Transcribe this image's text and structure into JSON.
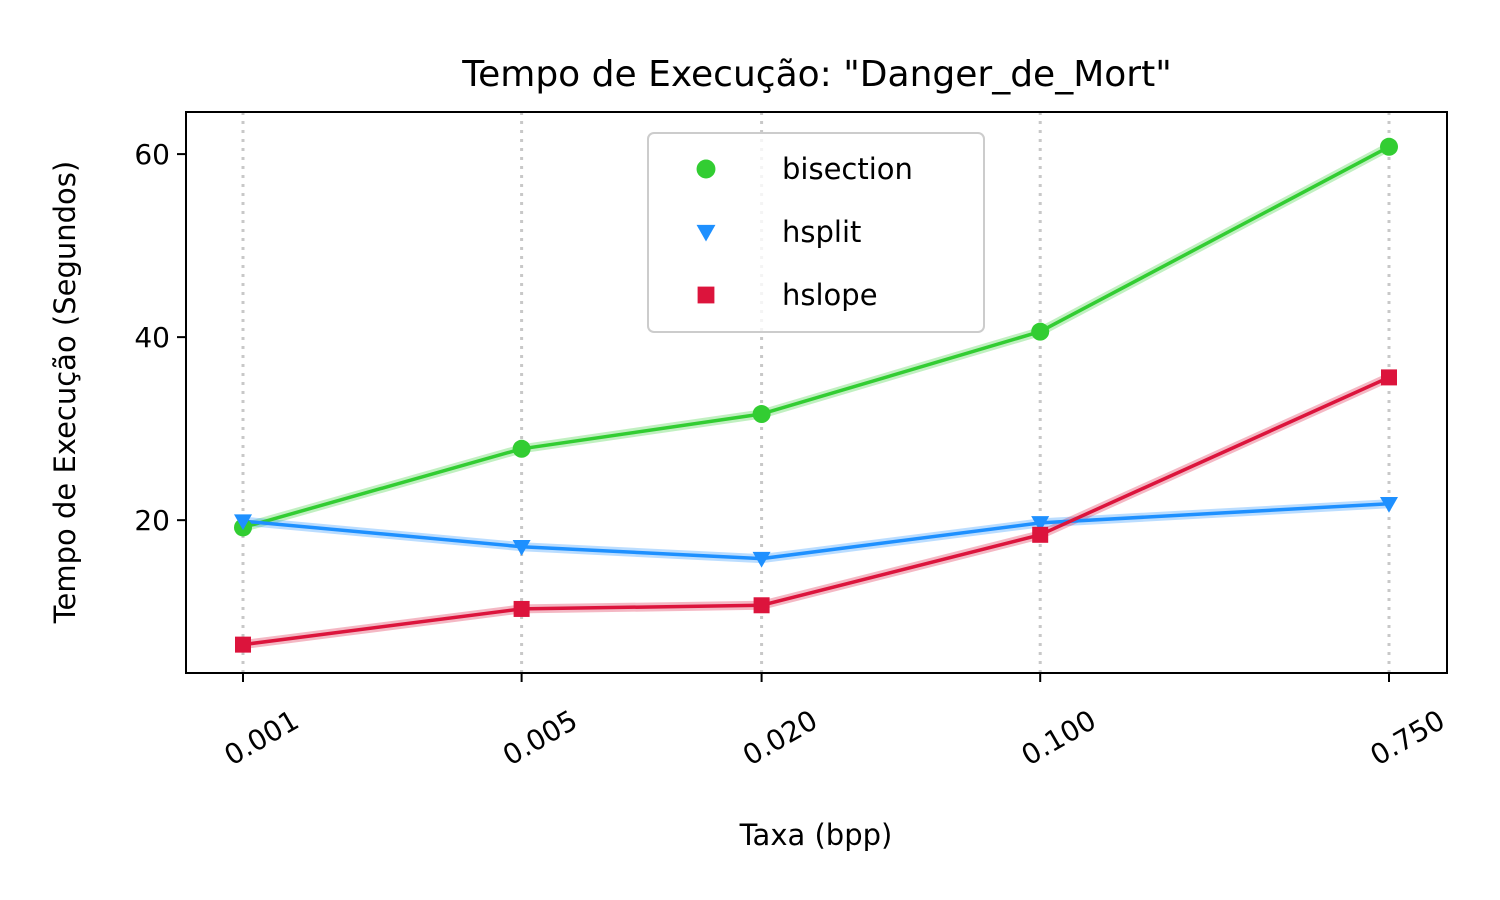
{
  "chart_data": {
    "type": "line",
    "title": "Tempo de Execução: \"Danger_de_Mort\"",
    "xlabel": "Taxa (bpp)",
    "ylabel": "Tempo de Execução (Segundos)",
    "x": [
      "0.001",
      "0.005",
      "0.020",
      "0.100",
      "0.750"
    ],
    "x_scale": "log",
    "x_values": [
      0.001,
      0.005,
      0.02,
      0.1,
      0.75
    ],
    "ylim": [
      3.3,
      64.6
    ],
    "yticks": [
      "20",
      "40",
      "60"
    ],
    "ytick_values": [
      20,
      40,
      60
    ],
    "grid": "vertical dotted at x ticks",
    "legend_position": "top-center",
    "series": [
      {
        "name": "bisection",
        "color": "#32cd32",
        "marker": "circle",
        "values": [
          19.2,
          27.8,
          31.6,
          40.6,
          60.8
        ]
      },
      {
        "name": "hsplit",
        "color": "#1e90ff",
        "marker": "triangle-down",
        "values": [
          19.9,
          17.1,
          15.8,
          19.7,
          21.8
        ]
      },
      {
        "name": "hslope",
        "color": "#dc143c",
        "marker": "square",
        "values": [
          6.4,
          10.3,
          10.7,
          18.4,
          35.6
        ]
      }
    ]
  }
}
